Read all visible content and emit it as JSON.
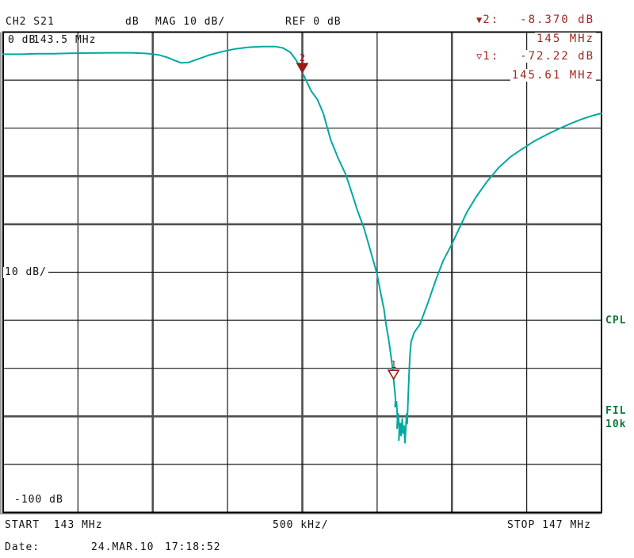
{
  "header": {
    "channel": "CH2 S21",
    "unit": "dB",
    "format": "MAG 10 dB/",
    "reference": "REF 0 dB"
  },
  "readout": {
    "m2_glyph": "▼",
    "m2_label": "2:",
    "m2_value": "-8.370 dB",
    "m2_freq": "145 MHz",
    "m1_glyph": "▽",
    "m1_label": "1:",
    "m1_value": "-72.22 dB",
    "m1_freq": "145.61 MHz"
  },
  "plot_labels": {
    "top_level": "0 dB",
    "top_freq": "143.5 MHz",
    "scale": "10 dB/",
    "bottom_level": "-100 dB"
  },
  "side_labels": {
    "coupling": "CPL",
    "filter": "FIL",
    "filter_value": "10k"
  },
  "x_axis": {
    "start": "START  143 MHz",
    "per_div": "500 kHz/",
    "stop": "STOP 147 MHz"
  },
  "footer": {
    "date_label": "Date:",
    "date_value": "24.MAR.10",
    "time_value": "17:18:52"
  },
  "colors": {
    "trace": "#00a9a0",
    "marker": "#991b15",
    "readout_text": "#a02820",
    "softkey_green": "#0a7a3a",
    "grid_minor": "#1a1a1a",
    "grid_major": "#4f4f4f"
  },
  "chart_data": {
    "type": "line",
    "title": "CH2 S21 dB MAG 10 dB/ REF 0 dB",
    "xlabel": "START 143 MHz ... STOP 147 MHz (500 kHz/div)",
    "ylabel": "S21 magnitude (dB), 10 dB/div, REF 0 dB",
    "xlim": [
      143,
      147
    ],
    "ylim": [
      -100,
      0
    ],
    "x_major_div_mhz": 1.0,
    "x_minor_div_mhz": 0.5,
    "y_div_db": 10,
    "grid": true,
    "markers": [
      {
        "id": "2",
        "filled": true,
        "freq_mhz": 145.0,
        "level_db": -8.37
      },
      {
        "id": "1",
        "filled": false,
        "freq_mhz": 145.61,
        "level_db": -72.22
      }
    ],
    "series": [
      {
        "name": "S21 trace",
        "points": [
          [
            143.0,
            -4.6
          ],
          [
            143.12,
            -4.6
          ],
          [
            143.22,
            -4.5
          ],
          [
            143.34,
            -4.5
          ],
          [
            143.44,
            -4.4
          ],
          [
            143.58,
            -4.35
          ],
          [
            143.72,
            -4.3
          ],
          [
            143.86,
            -4.3
          ],
          [
            143.96,
            -4.45
          ],
          [
            144.04,
            -4.75
          ],
          [
            144.1,
            -5.3
          ],
          [
            144.15,
            -5.95
          ],
          [
            144.19,
            -6.4
          ],
          [
            144.24,
            -6.3
          ],
          [
            144.3,
            -5.65
          ],
          [
            144.37,
            -4.85
          ],
          [
            144.46,
            -4.1
          ],
          [
            144.55,
            -3.5
          ],
          [
            144.64,
            -3.15
          ],
          [
            144.73,
            -3.0
          ],
          [
            144.82,
            -3.0
          ],
          [
            144.87,
            -3.3
          ],
          [
            144.92,
            -4.2
          ],
          [
            144.96,
            -5.9
          ],
          [
            145.0,
            -8.37
          ],
          [
            145.03,
            -10.4
          ],
          [
            145.06,
            -12.3
          ],
          [
            145.1,
            -14.0
          ],
          [
            145.14,
            -16.9
          ],
          [
            145.19,
            -22.5
          ],
          [
            145.24,
            -26.3
          ],
          [
            145.29,
            -29.6
          ],
          [
            145.33,
            -33.4
          ],
          [
            145.37,
            -37.3
          ],
          [
            145.41,
            -40.6
          ],
          [
            145.45,
            -44.9
          ],
          [
            145.48,
            -48.2
          ],
          [
            145.5,
            -50.5
          ],
          [
            145.52,
            -53.8
          ],
          [
            145.545,
            -57.6
          ],
          [
            145.56,
            -60.9
          ],
          [
            145.58,
            -64.6
          ],
          [
            145.6,
            -69.1
          ],
          [
            145.61,
            -72.22
          ],
          [
            145.617,
            -74.5
          ],
          [
            145.623,
            -76.5
          ],
          [
            145.62,
            -78.0
          ],
          [
            145.63,
            -77.0
          ],
          [
            145.636,
            -80.5
          ],
          [
            145.633,
            -82.5
          ],
          [
            145.642,
            -79.5
          ],
          [
            145.648,
            -83.0
          ],
          [
            145.645,
            -85.0
          ],
          [
            145.655,
            -81.5
          ],
          [
            145.66,
            -84.0
          ],
          [
            145.668,
            -80.5
          ],
          [
            145.673,
            -83.5
          ],
          [
            145.68,
            -82.0
          ],
          [
            145.686,
            -85.5
          ],
          [
            145.691,
            -83.0
          ],
          [
            145.696,
            -79.5
          ],
          [
            145.701,
            -81.5
          ],
          [
            145.707,
            -76.5
          ],
          [
            145.713,
            -71.5
          ],
          [
            145.719,
            -67.5
          ],
          [
            145.727,
            -64.5
          ],
          [
            145.748,
            -62.5
          ],
          [
            145.785,
            -60.9
          ],
          [
            145.84,
            -56.3
          ],
          [
            145.89,
            -51.8
          ],
          [
            145.94,
            -47.7
          ],
          [
            146.0,
            -44.1
          ],
          [
            146.05,
            -40.8
          ],
          [
            146.1,
            -37.5
          ],
          [
            146.16,
            -34.4
          ],
          [
            146.23,
            -31.3
          ],
          [
            146.31,
            -28.3
          ],
          [
            146.39,
            -26.0
          ],
          [
            146.47,
            -24.3
          ],
          [
            146.55,
            -22.7
          ],
          [
            146.63,
            -21.4
          ],
          [
            146.71,
            -20.2
          ],
          [
            146.79,
            -19.1
          ],
          [
            146.87,
            -18.1
          ],
          [
            146.94,
            -17.4
          ],
          [
            147.0,
            -16.9
          ]
        ]
      }
    ]
  }
}
